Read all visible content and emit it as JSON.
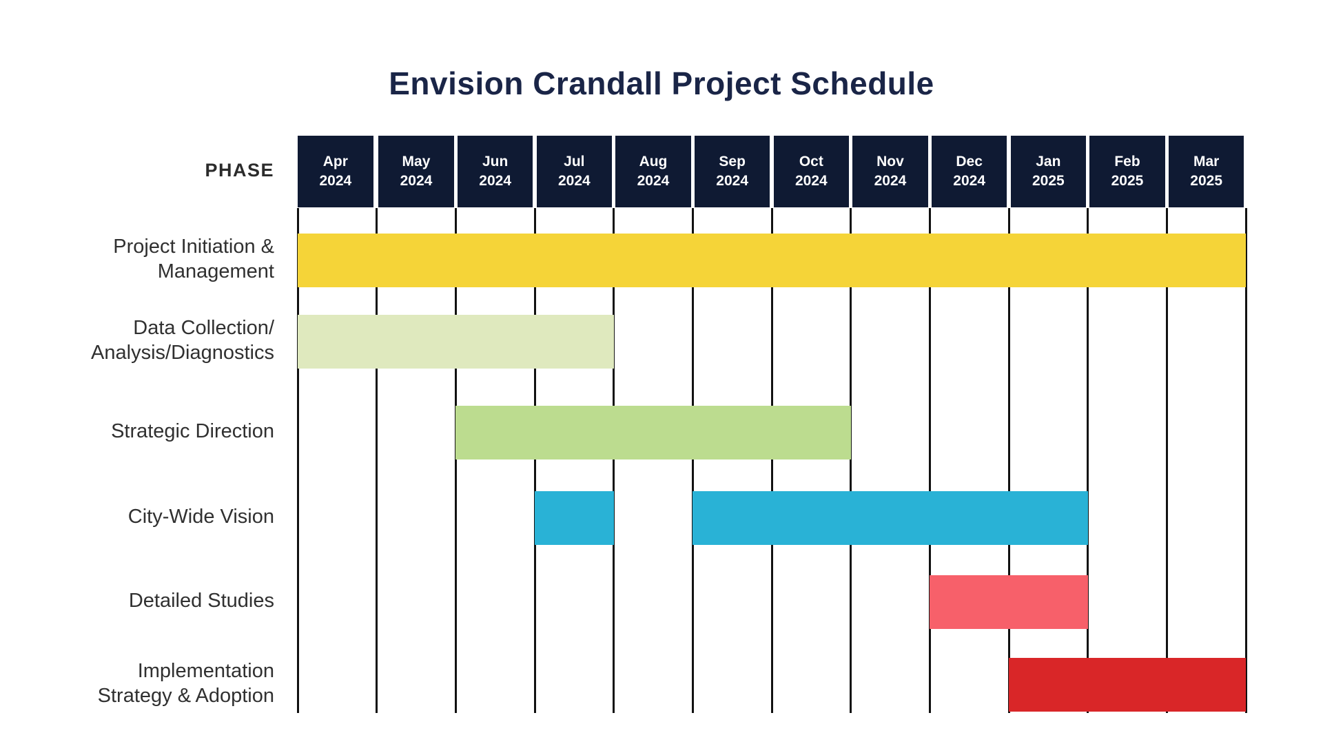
{
  "title": "Envision Crandall Project Schedule",
  "phase_column_label": "PHASE",
  "colors": {
    "title_navy": "#1a2547",
    "header_navy": "#0f1a33",
    "grid_line": "#111111",
    "row_label_text": "#303030",
    "header_text": "#ffffff",
    "background": "#ffffff"
  },
  "chart_data": {
    "type": "gantt",
    "title": "Envision Crandall Project Schedule",
    "axis_unit": "month",
    "grid": "on",
    "months": [
      {
        "month": "Apr",
        "year": "2024"
      },
      {
        "month": "May",
        "year": "2024"
      },
      {
        "month": "Jun",
        "year": "2024"
      },
      {
        "month": "Jul",
        "year": "2024"
      },
      {
        "month": "Aug",
        "year": "2024"
      },
      {
        "month": "Sep",
        "year": "2024"
      },
      {
        "month": "Oct",
        "year": "2024"
      },
      {
        "month": "Nov",
        "year": "2024"
      },
      {
        "month": "Dec",
        "year": "2024"
      },
      {
        "month": "Jan",
        "year": "2025"
      },
      {
        "month": "Feb",
        "year": "2025"
      },
      {
        "month": "Mar",
        "year": "2025"
      }
    ],
    "rows": [
      {
        "label": "Project Initiation & Management",
        "label_lines": [
          "Project Initiation &",
          "Management"
        ],
        "color": "#f5d438",
        "segments": [
          {
            "start": "Apr 2024",
            "end": "Mar 2025",
            "from_index": 0,
            "to_index": 12
          }
        ]
      },
      {
        "label": "Data Collection/Analysis/Diagnostics",
        "label_lines": [
          "Data Collection/",
          "Analysis/Diagnostics"
        ],
        "color": "#dfe9be",
        "segments": [
          {
            "start": "Apr 2024",
            "end": "Jul 2024",
            "from_index": 0,
            "to_index": 4
          }
        ]
      },
      {
        "label": "Strategic Direction",
        "label_lines": [
          "Strategic Direction"
        ],
        "color": "#bcdc8f",
        "segments": [
          {
            "start": "Jun 2024",
            "end": "Oct 2024",
            "from_index": 2,
            "to_index": 7
          }
        ]
      },
      {
        "label": "City-Wide Vision",
        "label_lines": [
          "City-Wide Vision"
        ],
        "color": "#29b2d6",
        "segments": [
          {
            "start": "Jul 2024",
            "end": "Jul 2024",
            "from_index": 3,
            "to_index": 4
          },
          {
            "start": "Sep 2024",
            "end": "Jan 2025",
            "from_index": 5,
            "to_index": 10
          }
        ]
      },
      {
        "label": "Detailed Studies",
        "label_lines": [
          "Detailed Studies"
        ],
        "color": "#f7606a",
        "segments": [
          {
            "start": "Dec 2024",
            "end": "Jan 2025",
            "from_index": 8,
            "to_index": 10
          }
        ]
      },
      {
        "label": "Implementation Strategy & Adoption",
        "label_lines": [
          "Implementation",
          "Strategy & Adoption"
        ],
        "color": "#d92628",
        "segments": [
          {
            "start": "Jan 2025",
            "end": "Mar 2025",
            "from_index": 9,
            "to_index": 12
          }
        ]
      }
    ]
  }
}
